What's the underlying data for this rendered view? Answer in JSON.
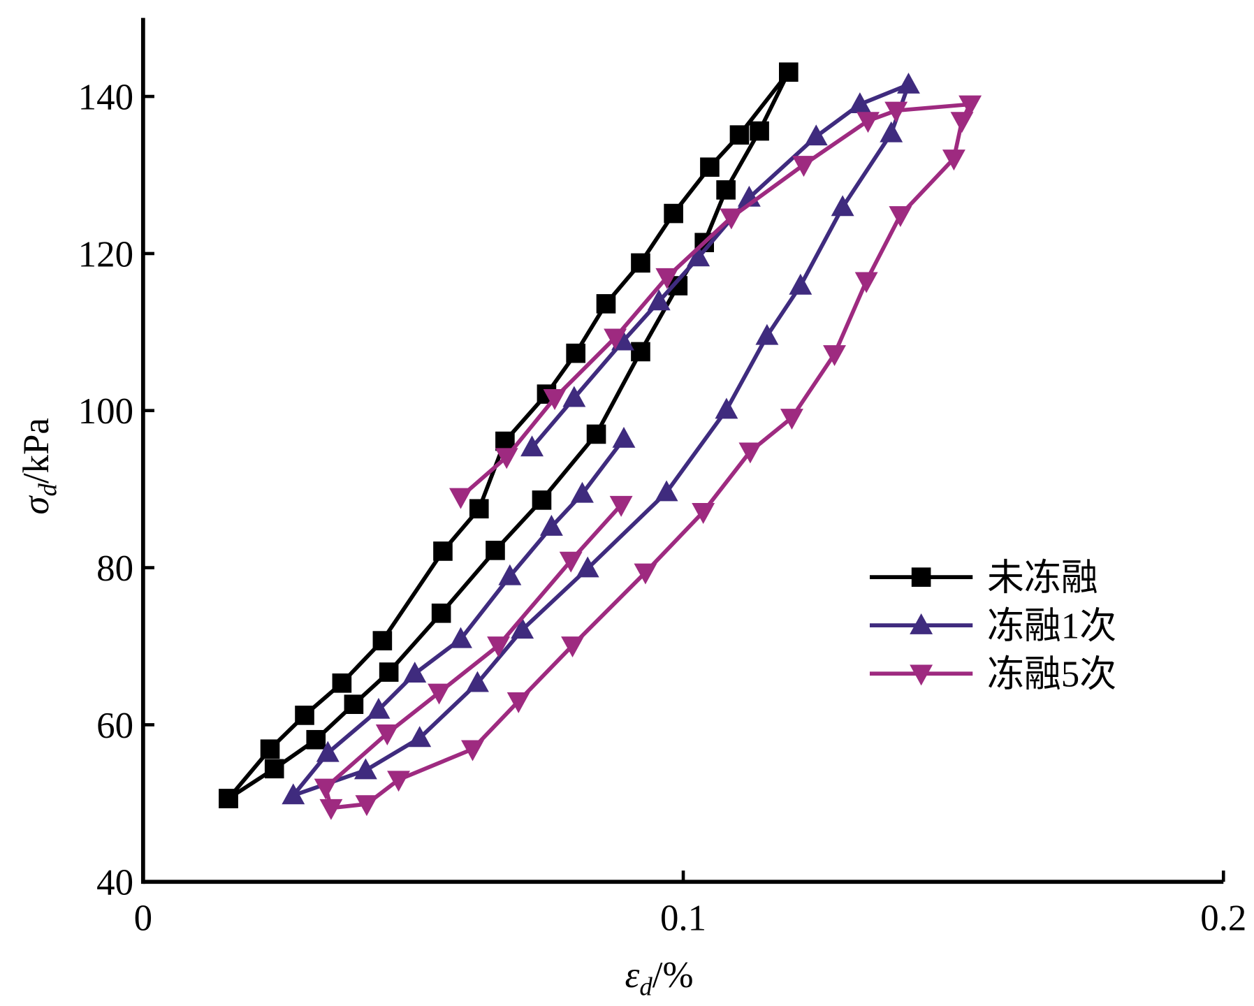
{
  "chart_data": {
    "type": "line",
    "xlabel": {
      "symbol": "ε",
      "subscript": "d",
      "unit": "/%"
    },
    "ylabel": {
      "symbol": "σ",
      "subscript": "d",
      "unit": "/kPa"
    },
    "xlim": [
      0,
      0.2
    ],
    "ylim": [
      40,
      150
    ],
    "xticks": [
      0,
      0.1,
      0.2
    ],
    "yticks": [
      40,
      60,
      80,
      100,
      120,
      140
    ],
    "legend": "right",
    "series": [
      {
        "name": "未冻融",
        "color": "#000000",
        "marker": "square",
        "x": [
          0.0158,
          0.0235,
          0.0299,
          0.0368,
          0.0443,
          0.0555,
          0.0622,
          0.067,
          0.0747,
          0.0801,
          0.0857,
          0.0921,
          0.0982,
          0.1049,
          0.1104,
          0.1195,
          0.1141,
          0.1079,
          0.1039,
          0.099,
          0.0921,
          0.0839,
          0.0738,
          0.0652,
          0.0552,
          0.0455,
          0.039,
          0.032,
          0.0243,
          0.0158
        ],
        "values": [
          50.6,
          56.9,
          61.2,
          65.3,
          70.7,
          82.1,
          87.5,
          96.1,
          102.1,
          107.3,
          113.6,
          118.8,
          125.1,
          131.0,
          135.1,
          143.1,
          135.6,
          128.1,
          121.4,
          115.9,
          107.5,
          97.0,
          88.6,
          82.2,
          74.2,
          66.7,
          62.6,
          58.1,
          54.4,
          50.6
        ]
      },
      {
        "name": "冻融1次",
        "color": "#3f2b7e",
        "marker": "triangle-up",
        "x": [
          0.089,
          0.0813,
          0.0756,
          0.0679,
          0.0588,
          0.0503,
          0.0436,
          0.0342,
          0.0278,
          0.0412,
          0.0512,
          0.0619,
          0.0702,
          0.0823,
          0.0969,
          0.108,
          0.1155,
          0.1217,
          0.1295,
          0.1385,
          0.1417,
          0.1327,
          0.1246,
          0.1122,
          0.1028,
          0.0955,
          0.0888,
          0.0798,
          0.072
        ],
        "values": [
          96.4,
          89.4,
          85.2,
          78.9,
          70.9,
          66.5,
          61.9,
          56.4,
          51.0,
          54.2,
          58.3,
          65.3,
          72.1,
          79.9,
          89.6,
          100.1,
          109.5,
          115.9,
          125.9,
          135.3,
          141.5,
          139.0,
          134.9,
          127.1,
          119.5,
          113.9,
          108.8,
          101.6,
          95.3
        ]
      },
      {
        "name": "冻融5次",
        "color": "#9e2a80",
        "marker": "triangle-down",
        "x": [
          0.0885,
          0.0792,
          0.0658,
          0.0548,
          0.0452,
          0.0338,
          0.0348,
          0.0414,
          0.0473,
          0.061,
          0.0695,
          0.0795,
          0.093,
          0.1037,
          0.1124,
          0.1201,
          0.128,
          0.1339,
          0.1402,
          0.1501,
          0.1516,
          0.1531,
          0.1394,
          0.1342,
          0.1223,
          0.1089,
          0.097,
          0.0874,
          0.0762,
          0.0673,
          0.0588
        ],
        "values": [
          88.0,
          80.9,
          70.1,
          64.1,
          58.9,
          52.0,
          49.4,
          49.9,
          53.0,
          56.9,
          63.0,
          70.1,
          79.4,
          87.1,
          94.8,
          99.1,
          107.2,
          116.5,
          124.9,
          132.1,
          136.9,
          139.0,
          138.2,
          136.9,
          131.3,
          124.6,
          117.0,
          109.3,
          101.6,
          94.1,
          89.0
        ]
      }
    ]
  }
}
